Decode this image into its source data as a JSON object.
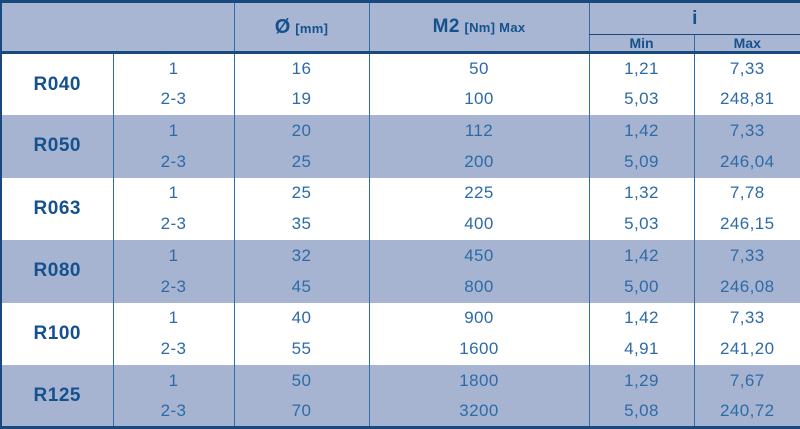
{
  "header": {
    "diameter": {
      "symbol": "Ø",
      "unit": "[mm]"
    },
    "torque": {
      "symbol": "M2",
      "unit": "[Nm] Max"
    },
    "ratio": {
      "label": "i",
      "min": "Min",
      "max": "Max"
    }
  },
  "groups": [
    {
      "label": "R040",
      "rows": [
        {
          "stages": "1",
          "diameter": "16",
          "torque": "50",
          "i_min": "1,21",
          "i_max": "7,33"
        },
        {
          "stages": "2-3",
          "diameter": "19",
          "torque": "100",
          "i_min": "5,03",
          "i_max": "248,81"
        }
      ]
    },
    {
      "label": "R050",
      "rows": [
        {
          "stages": "1",
          "diameter": "20",
          "torque": "112",
          "i_min": "1,42",
          "i_max": "7,33"
        },
        {
          "stages": "2-3",
          "diameter": "25",
          "torque": "200",
          "i_min": "5,09",
          "i_max": "246,04"
        }
      ]
    },
    {
      "label": "R063",
      "rows": [
        {
          "stages": "1",
          "diameter": "25",
          "torque": "225",
          "i_min": "1,32",
          "i_max": "7,78"
        },
        {
          "stages": "2-3",
          "diameter": "35",
          "torque": "400",
          "i_min": "5,03",
          "i_max": "246,15"
        }
      ]
    },
    {
      "label": "R080",
      "rows": [
        {
          "stages": "1",
          "diameter": "32",
          "torque": "450",
          "i_min": "1,42",
          "i_max": "7,33"
        },
        {
          "stages": "2-3",
          "diameter": "45",
          "torque": "800",
          "i_min": "5,00",
          "i_max": "246,08"
        }
      ]
    },
    {
      "label": "R100",
      "rows": [
        {
          "stages": "1",
          "diameter": "40",
          "torque": "900",
          "i_min": "1,42",
          "i_max": "7,33"
        },
        {
          "stages": "2-3",
          "diameter": "55",
          "torque": "1600",
          "i_min": "4,91",
          "i_max": "241,20"
        }
      ]
    },
    {
      "label": "R125",
      "rows": [
        {
          "stages": "1",
          "diameter": "50",
          "torque": "1800",
          "i_min": "1,29",
          "i_max": "7,67"
        },
        {
          "stages": "2-3",
          "diameter": "70",
          "torque": "3200",
          "i_min": "5,08",
          "i_max": "240,72"
        }
      ]
    }
  ],
  "colors": {
    "band": "#a6b4d2",
    "header_bg": "#a8b6d3",
    "border_dark": "#17497e",
    "grid_line": "#2e6da6",
    "text_value": "#2d6ba6",
    "text_label": "#14518d",
    "row_white": "#ffffff"
  }
}
